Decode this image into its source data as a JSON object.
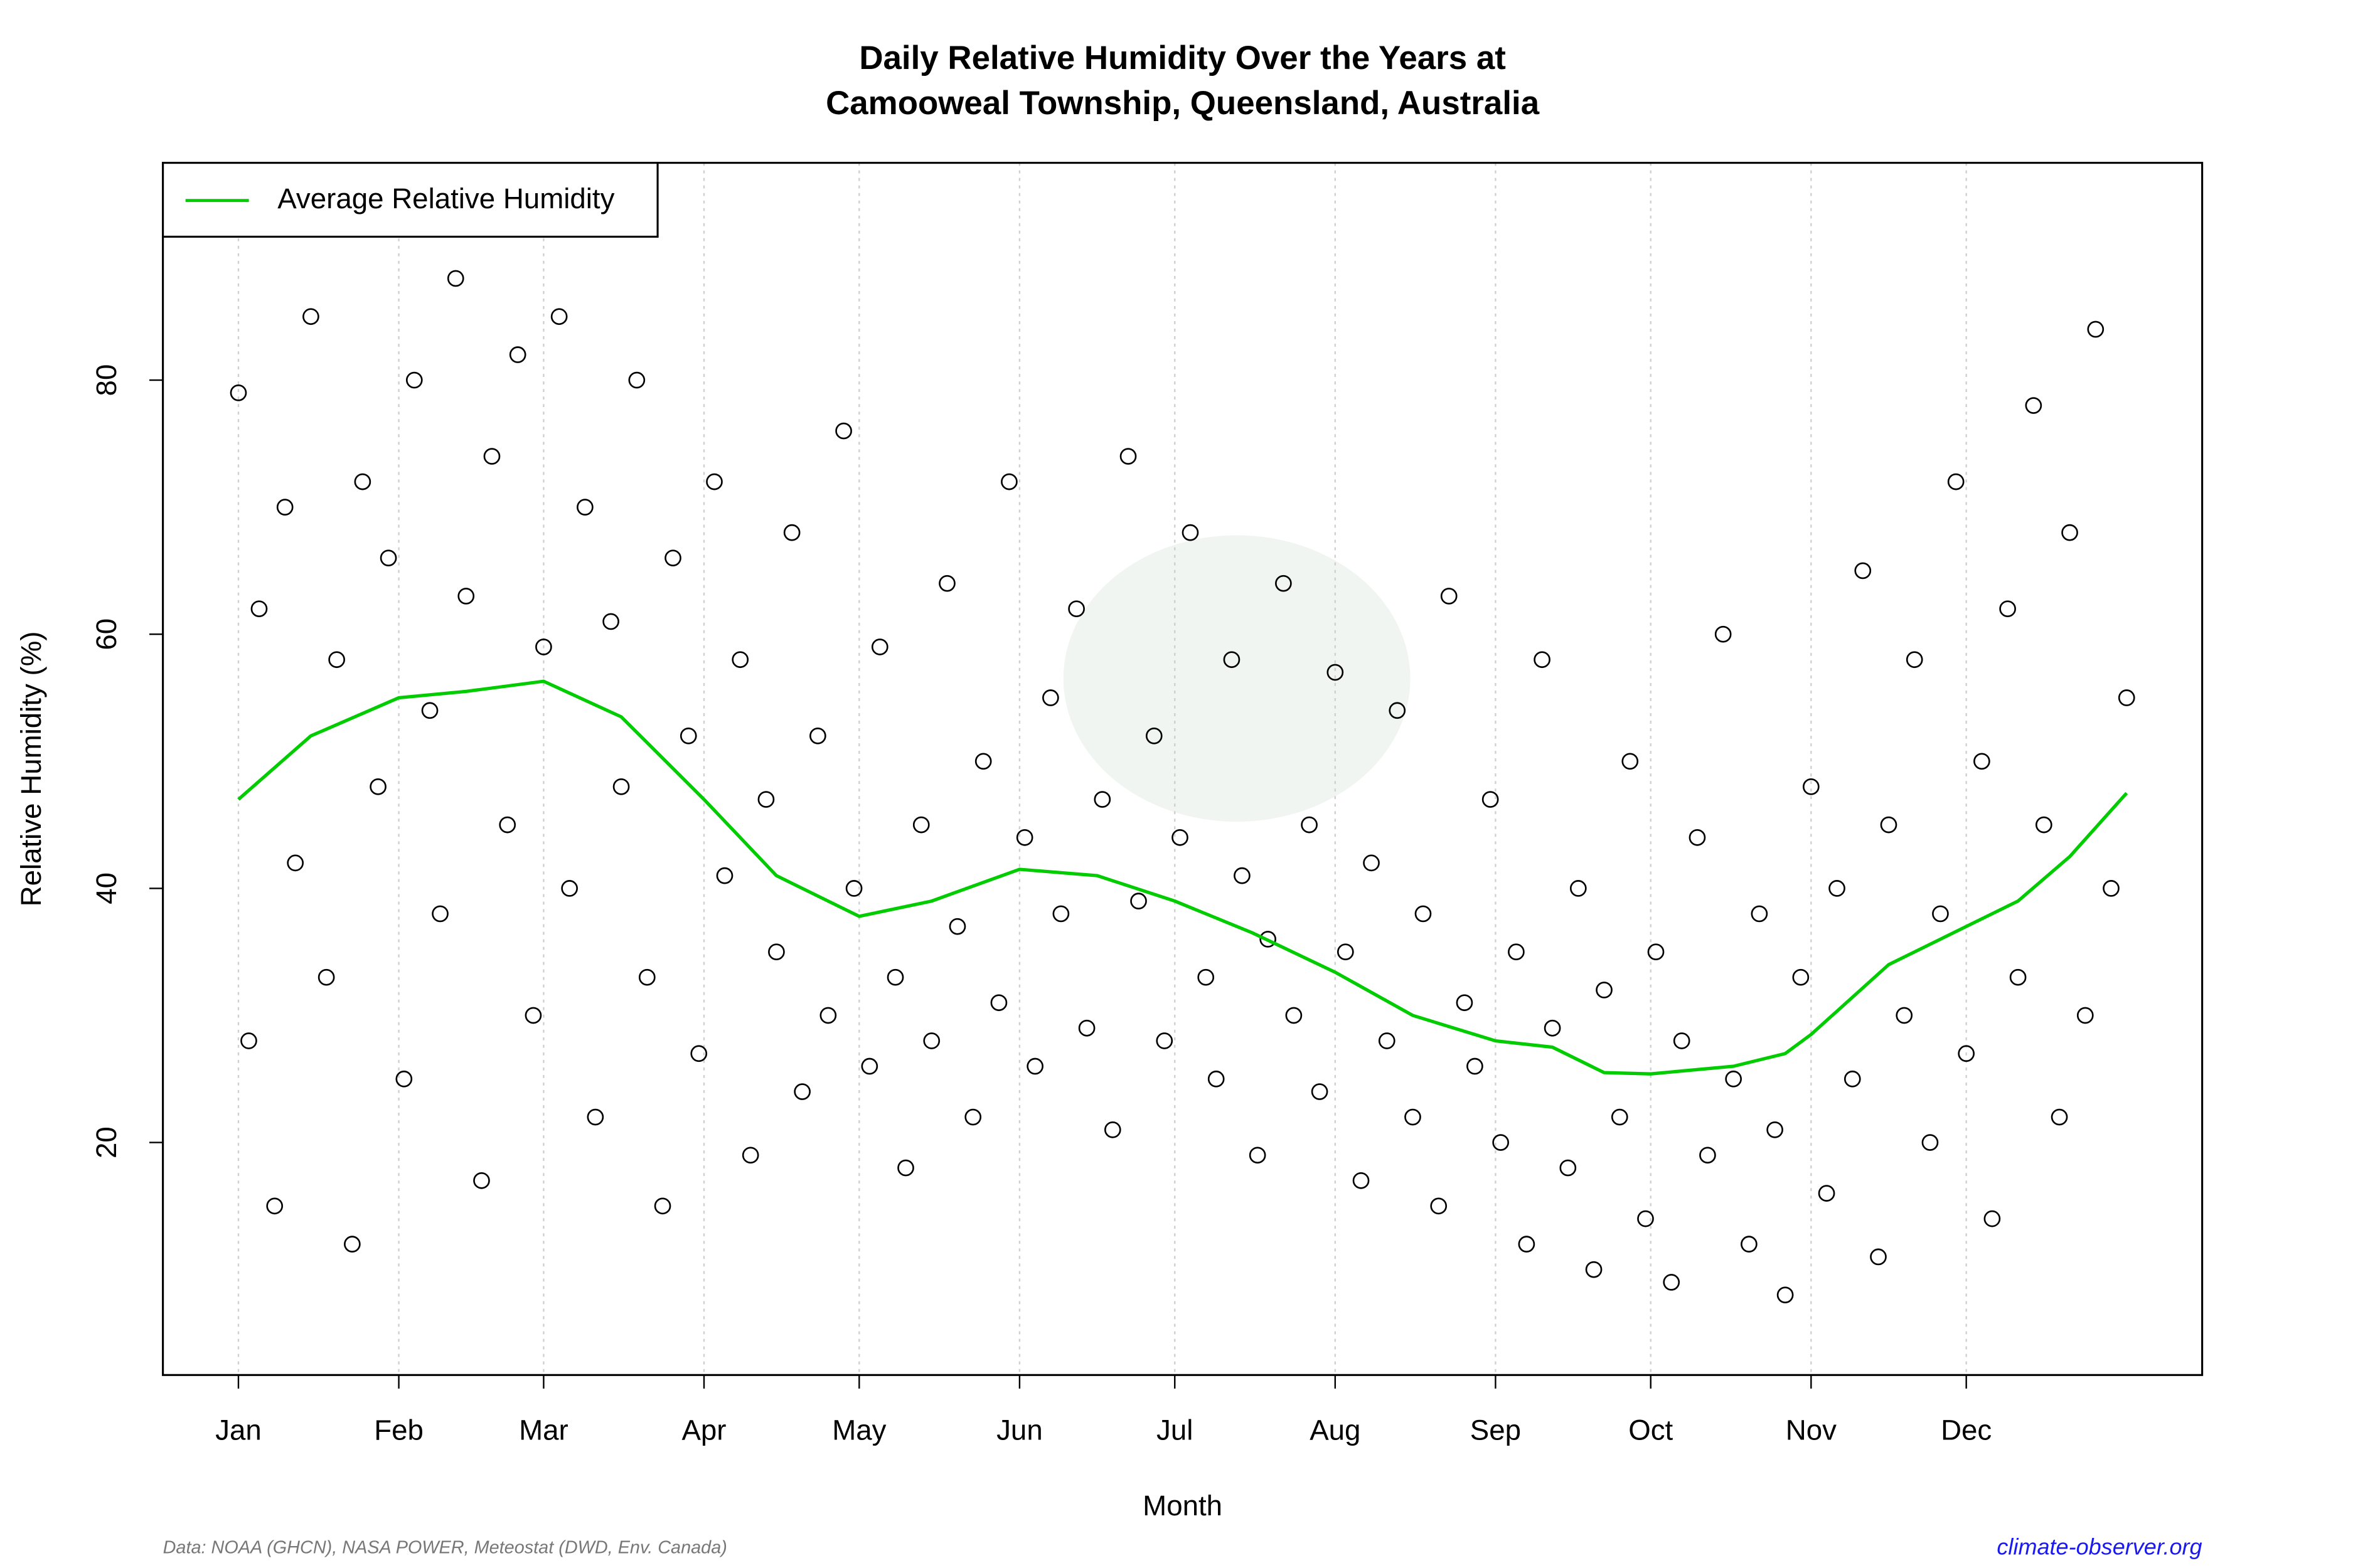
{
  "chart_data": {
    "type": "scatter",
    "title": [
      "Daily Relative Humidity Over the Years at",
      "Camooweal Township, Queensland, Australia"
    ],
    "x_label": "Month",
    "y_label": "Relative Humidity  (%)",
    "source": "Data: NOAA (GHCN), NASA POWER, Meteostat (DWD, Env. Canada)",
    "site": "climate-observer.org",
    "xlim": [
      -13.6,
      380.6
    ],
    "ylim": [
      1.7,
      97.1
    ],
    "xticks": [
      {
        "value": 1,
        "label": "Jan"
      },
      {
        "value": 32,
        "label": "Feb"
      },
      {
        "value": 60,
        "label": "Mar"
      },
      {
        "value": 91,
        "label": "Apr"
      },
      {
        "value": 121,
        "label": "May"
      },
      {
        "value": 152,
        "label": "Jun"
      },
      {
        "value": 182,
        "label": "Jul"
      },
      {
        "value": 213,
        "label": "Aug"
      },
      {
        "value": 244,
        "label": "Sep"
      },
      {
        "value": 274,
        "label": "Oct"
      },
      {
        "value": 305,
        "label": "Nov"
      },
      {
        "value": 335,
        "label": "Dec"
      }
    ],
    "yticks": [
      20,
      40,
      60,
      80
    ],
    "grid": "x",
    "legend": "top-left",
    "point_color": "#000000",
    "points": {
      "x": [
        1,
        3,
        5,
        8,
        10,
        12,
        15,
        18,
        20,
        23,
        25,
        28,
        30,
        33,
        35,
        38,
        40,
        43,
        45,
        48,
        50,
        53,
        55,
        58,
        60,
        63,
        65,
        68,
        70,
        73,
        75,
        78,
        80,
        83,
        85,
        88,
        90,
        93,
        95,
        98,
        100,
        103,
        105,
        108,
        110,
        113,
        115,
        118,
        120,
        123,
        125,
        128,
        130,
        133,
        135,
        138,
        140,
        143,
        145,
        148,
        150,
        153,
        155,
        158,
        160,
        163,
        165,
        168,
        170,
        173,
        175,
        178,
        180,
        183,
        185,
        188,
        190,
        193,
        195,
        198,
        200,
        203,
        205,
        208,
        210,
        213,
        215,
        218,
        220,
        223,
        225,
        228,
        230,
        233,
        235,
        238,
        240,
        243,
        245,
        248,
        250,
        253,
        255,
        258,
        260,
        263,
        265,
        268,
        270,
        273,
        275,
        278,
        280,
        283,
        285,
        288,
        290,
        293,
        295,
        298,
        300,
        303,
        305,
        308,
        310,
        313,
        315,
        318,
        320,
        323,
        325,
        328,
        330,
        333,
        335,
        338,
        340,
        343,
        345,
        348,
        350,
        353,
        355,
        358,
        360,
        363,
        366
      ],
      "values": [
        79,
        28,
        62,
        15,
        70,
        42,
        85,
        33,
        58,
        12,
        72,
        48,
        66,
        25,
        80,
        54,
        38,
        88,
        63,
        17,
        74,
        45,
        82,
        30,
        59,
        85,
        40,
        70,
        22,
        61,
        48,
        80,
        33,
        15,
        66,
        52,
        27,
        72,
        41,
        58,
        19,
        47,
        35,
        68,
        24,
        52,
        30,
        76,
        40,
        26,
        59,
        33,
        18,
        45,
        28,
        64,
        37,
        22,
        50,
        31,
        72,
        44,
        26,
        55,
        38,
        62,
        29,
        47,
        21,
        74,
        39,
        52,
        28,
        44,
        68,
        33,
        25,
        58,
        41,
        19,
        36,
        64,
        30,
        45,
        24,
        57,
        35,
        17,
        42,
        28,
        54,
        22,
        38,
        15,
        63,
        31,
        26,
        47,
        20,
        35,
        12,
        58,
        29,
        18,
        40,
        10,
        32,
        22,
        50,
        14,
        35,
        9,
        28,
        44,
        19,
        60,
        25,
        12,
        38,
        21,
        8,
        33,
        48,
        16,
        40,
        25,
        65,
        11,
        45,
        30,
        58,
        20,
        38,
        72,
        27,
        50,
        14,
        62,
        33,
        78,
        45,
        22,
        68,
        30,
        84,
        40,
        55
      ]
    },
    "series": [
      {
        "name": "Average Relative Humidity",
        "color": "#00cc00",
        "x": [
          1,
          15,
          32,
          45,
          60,
          75,
          91,
          105,
          121,
          135,
          152,
          167,
          182,
          197,
          213,
          228,
          244,
          255,
          265,
          274,
          290,
          300,
          305,
          320,
          335,
          345,
          355,
          366
        ],
        "values": [
          47,
          52,
          55,
          55.5,
          56.3,
          53.5,
          47,
          41,
          37.8,
          39,
          41.5,
          41,
          39,
          36.5,
          33.4,
          30,
          28,
          27.5,
          25.5,
          25.4,
          26,
          27,
          28.5,
          34,
          37,
          39,
          42.5,
          47.5
        ]
      }
    ]
  }
}
